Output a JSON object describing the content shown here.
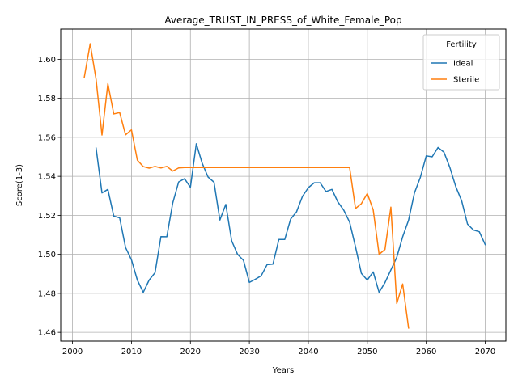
{
  "chart_data": {
    "type": "line",
    "title": "Average_TRUST_IN_PRESS_of_White_Female_Pop",
    "xlabel": "Years",
    "ylabel": "Score(1-3)",
    "xlim": [
      1998,
      2073.5
    ],
    "ylim": [
      1.4555,
      1.6155
    ],
    "xticks": [
      2000,
      2010,
      2020,
      2030,
      2040,
      2050,
      2060,
      2070
    ],
    "yticks": [
      1.46,
      1.48,
      1.5,
      1.52,
      1.54,
      1.56,
      1.58,
      1.6
    ],
    "ytick_labels": [
      "1.46",
      "1.48",
      "1.50",
      "1.52",
      "1.54",
      "1.56",
      "1.58",
      "1.60"
    ],
    "grid": true,
    "legend": {
      "title": "Fertility",
      "position": "top-right"
    },
    "series": [
      {
        "name": "Ideal",
        "color": "#1f77b4",
        "x": [
          2004,
          2005,
          2006,
          2007,
          2008,
          2009,
          2010,
          2011,
          2012,
          2013,
          2014,
          2015,
          2016,
          2017,
          2018,
          2019,
          2020,
          2021,
          2022,
          2023,
          2024,
          2025,
          2026,
          2027,
          2028,
          2029,
          2030,
          2031,
          2032,
          2033,
          2034,
          2035,
          2036,
          2037,
          2038,
          2039,
          2040,
          2041,
          2042,
          2043,
          2044,
          2045,
          2046,
          2047,
          2048,
          2049,
          2050,
          2051,
          2052,
          2053,
          2054,
          2055,
          2056,
          2057,
          2058,
          2059,
          2060,
          2061,
          2062,
          2063,
          2064,
          2065,
          2066,
          2067,
          2068,
          2069,
          2070
        ],
        "y": [
          1.5545,
          1.5315,
          1.5333,
          1.5196,
          1.5187,
          1.5035,
          1.4972,
          1.4868,
          1.4805,
          1.4868,
          1.4906,
          1.5091,
          1.509,
          1.5263,
          1.5371,
          1.5388,
          1.5344,
          1.5567,
          1.5467,
          1.5396,
          1.537,
          1.5176,
          1.5256,
          1.5069,
          1.5,
          1.4969,
          1.4856,
          1.4872,
          1.489,
          1.4947,
          1.495,
          1.5076,
          1.5076,
          1.5181,
          1.5218,
          1.5297,
          1.5342,
          1.5367,
          1.5367,
          1.5322,
          1.5333,
          1.5269,
          1.5227,
          1.5165,
          1.5038,
          1.4902,
          1.4868,
          1.491,
          1.4805,
          1.4855,
          1.492,
          1.4985,
          1.509,
          1.5175,
          1.5315,
          1.5395,
          1.5505,
          1.55,
          1.5548,
          1.5524,
          1.5446,
          1.5348,
          1.5275,
          1.5155,
          1.5125,
          1.5116,
          1.505
        ]
      },
      {
        "name": "Sterile",
        "color": "#ff7f0e",
        "x": [
          2002,
          2003,
          2004,
          2005,
          2006,
          2007,
          2008,
          2009,
          2010,
          2011,
          2012,
          2013,
          2014,
          2015,
          2016,
          2017,
          2018,
          2019,
          2020,
          2021,
          2022,
          2023,
          2024,
          2025,
          2026,
          2027,
          2028,
          2029,
          2030,
          2031,
          2032,
          2033,
          2034,
          2035,
          2036,
          2037,
          2038,
          2039,
          2040,
          2041,
          2042,
          2043,
          2044,
          2045,
          2046,
          2047,
          2048,
          2049,
          2050,
          2051,
          2052,
          2053,
          2054,
          2055,
          2056,
          2057
        ],
        "y": [
          1.5908,
          1.608,
          1.5897,
          1.5612,
          1.5875,
          1.572,
          1.5727,
          1.5613,
          1.5638,
          1.5483,
          1.545,
          1.5442,
          1.5451,
          1.5443,
          1.5451,
          1.5427,
          1.5443,
          1.5445,
          1.5445,
          1.5445,
          1.5445,
          1.5445,
          1.5445,
          1.5445,
          1.5445,
          1.5445,
          1.5445,
          1.5445,
          1.5445,
          1.5445,
          1.5445,
          1.5445,
          1.5445,
          1.5445,
          1.5445,
          1.5445,
          1.5445,
          1.5445,
          1.5445,
          1.5445,
          1.5445,
          1.5445,
          1.5445,
          1.5445,
          1.5445,
          1.5445,
          1.5235,
          1.526,
          1.5312,
          1.5228,
          1.5,
          1.5025,
          1.5242,
          1.4748,
          1.4848,
          1.4622
        ]
      }
    ]
  }
}
